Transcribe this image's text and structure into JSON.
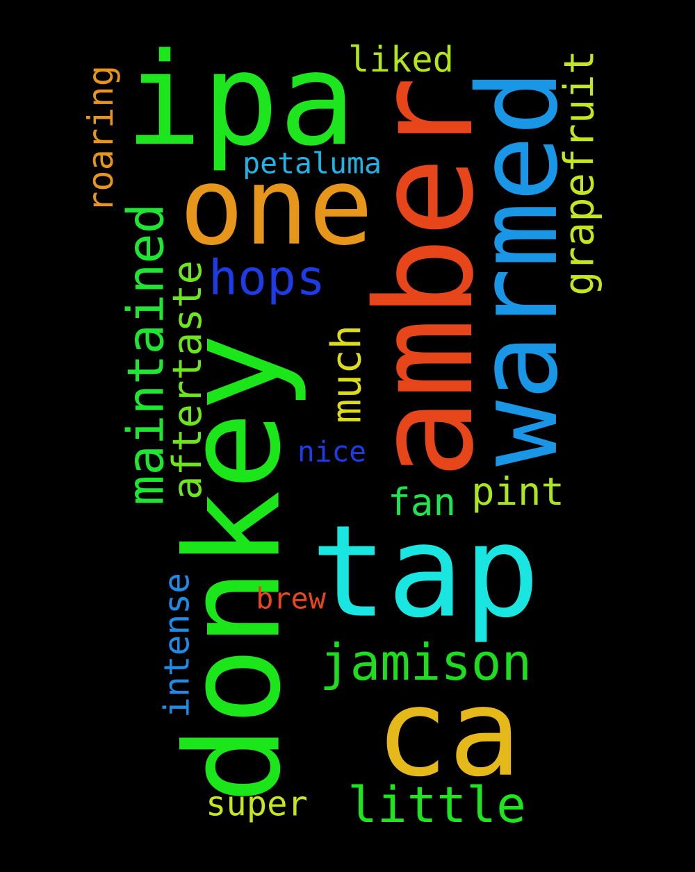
{
  "colors": {
    "background": "#000000"
  },
  "words": [
    {
      "text": "ipa",
      "color": "#1ee61e",
      "orientation": "horizontal"
    },
    {
      "text": "donkey",
      "color": "#1ae61a",
      "orientation": "vertical"
    },
    {
      "text": "amber",
      "color": "#e6461a",
      "orientation": "vertical"
    },
    {
      "text": "warmed",
      "color": "#1a96e6",
      "orientation": "vertical"
    },
    {
      "text": "one",
      "color": "#e6961a",
      "orientation": "horizontal"
    },
    {
      "text": "tap",
      "color": "#1ae6e1",
      "orientation": "horizontal"
    },
    {
      "text": "ca",
      "color": "#e6b91a",
      "orientation": "horizontal"
    },
    {
      "text": "hops",
      "color": "#1e3ce6",
      "orientation": "horizontal"
    },
    {
      "text": "maintained",
      "color": "#1ee632",
      "orientation": "vertical"
    },
    {
      "text": "aftertaste",
      "color": "#6ee61e",
      "orientation": "vertical"
    },
    {
      "text": "grapefruit",
      "color": "#c3e61e",
      "orientation": "vertical"
    },
    {
      "text": "roaring",
      "color": "#e6961e",
      "orientation": "vertical"
    },
    {
      "text": "much",
      "color": "#dcdc1e",
      "orientation": "vertical"
    },
    {
      "text": "jamison",
      "color": "#1edc1e",
      "orientation": "horizontal"
    },
    {
      "text": "little",
      "color": "#1ee61e",
      "orientation": "horizontal"
    },
    {
      "text": "liked",
      "color": "#b4e61e",
      "orientation": "horizontal"
    },
    {
      "text": "pint",
      "color": "#aae61e",
      "orientation": "horizontal"
    },
    {
      "text": "fan",
      "color": "#1ee650",
      "orientation": "horizontal"
    },
    {
      "text": "super",
      "color": "#c3e61e",
      "orientation": "horizontal"
    },
    {
      "text": "intense",
      "color": "#1e8ce6",
      "orientation": "vertical"
    },
    {
      "text": "petaluma",
      "color": "#1eb4e6",
      "orientation": "horizontal"
    },
    {
      "text": "nice",
      "color": "#1e3ce6",
      "orientation": "horizontal"
    },
    {
      "text": "brew",
      "color": "#e6461e",
      "orientation": "horizontal"
    }
  ]
}
